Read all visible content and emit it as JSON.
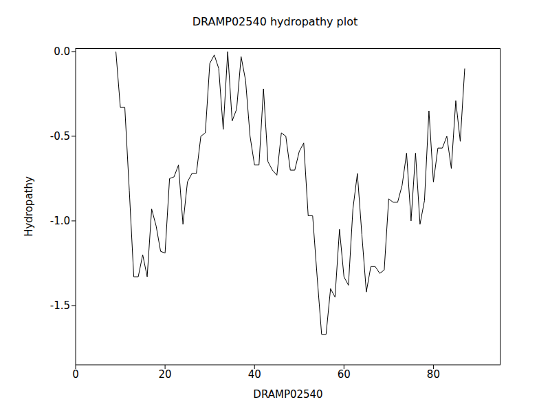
{
  "chart_data": {
    "type": "line",
    "title": "DRAMP02540 hydropathy plot",
    "x_label": "DRAMP02540",
    "y_label": "Hydropathy",
    "color": "#000000",
    "grid": false,
    "xlim": [
      0,
      95
    ],
    "xticks": [
      0,
      20,
      40,
      60,
      80
    ],
    "ylim": [
      -1.85,
      0.02
    ],
    "yticks": [
      {
        "value": 0,
        "label": "0.0"
      },
      -0.5,
      {
        "value": -1,
        "label": "-1.0"
      },
      -1.5
    ],
    "x": [
      9,
      10,
      11,
      12,
      13,
      14,
      15,
      16,
      17,
      18,
      19,
      20,
      21,
      22,
      23,
      24,
      25,
      26,
      27,
      28,
      29,
      30,
      31,
      32,
      33,
      34,
      35,
      36,
      37,
      38,
      39,
      40,
      41,
      42,
      43,
      44,
      45,
      46,
      47,
      48,
      49,
      50,
      51,
      52,
      53,
      54,
      55,
      56,
      57,
      58,
      59,
      60,
      61,
      62,
      63,
      64,
      65,
      66,
      67,
      68,
      69,
      70,
      71,
      72,
      73,
      74,
      75,
      76,
      77,
      78,
      79,
      80,
      81,
      82,
      83,
      84,
      85,
      86,
      87
    ],
    "values": [
      0.0,
      -0.33,
      -0.33,
      -0.82,
      -1.33,
      -1.33,
      -1.2,
      -1.33,
      -0.93,
      -1.03,
      -1.18,
      -1.19,
      -0.75,
      -0.74,
      -0.67,
      -1.02,
      -0.77,
      -0.72,
      -0.72,
      -0.5,
      -0.48,
      -0.07,
      -0.02,
      -0.1,
      -0.46,
      0.0,
      -0.41,
      -0.34,
      -0.03,
      -0.17,
      -0.5,
      -0.67,
      -0.67,
      -0.22,
      -0.65,
      -0.7,
      -0.73,
      -0.48,
      -0.5,
      -0.7,
      -0.7,
      -0.59,
      -0.54,
      -0.97,
      -0.97,
      -1.33,
      -1.67,
      -1.67,
      -1.4,
      -1.45,
      -1.05,
      -1.33,
      -1.38,
      -0.93,
      -0.72,
      -1.08,
      -1.42,
      -1.27,
      -1.27,
      -1.31,
      -1.29,
      -0.87,
      -0.89,
      -0.89,
      -0.79,
      -0.6,
      -1.0,
      -0.6,
      -1.02,
      -0.88,
      -0.35,
      -0.77,
      -0.57,
      -0.57,
      -0.5,
      -0.69,
      -0.29,
      -0.53,
      -0.1
    ]
  }
}
